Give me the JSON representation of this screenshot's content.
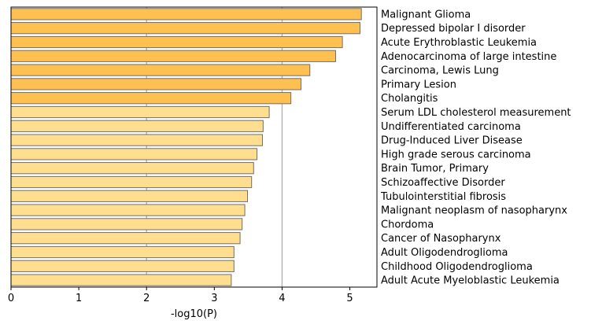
{
  "chart_data": {
    "type": "bar",
    "orientation": "horizontal",
    "xlabel": "-log10(P)",
    "xlim": [
      0,
      5.4
    ],
    "xticks": [
      0,
      1,
      2,
      3,
      4,
      5
    ],
    "grid": "vertical",
    "gridlines_at": [
      2,
      4
    ],
    "categories": [
      "Malignant Glioma",
      "Depressed bipolar I disorder",
      "Acute Erythroblastic Leukemia",
      "Adenocarcinoma of large intestine",
      "Carcinoma, Lewis Lung",
      "Primary Lesion",
      "Cholangitis",
      "Serum LDL cholesterol measurement",
      "Undifferentiated carcinoma",
      "Drug-Induced Liver Disease",
      "High grade serous carcinoma",
      "Brain Tumor, Primary",
      "Schizoaffective Disorder",
      "Tubulointerstitial fibrosis",
      "Malignant neoplasm of nasopharynx",
      "Chordoma",
      "Cancer of Nasopharynx",
      "Adult Oligodendroglioma",
      "Childhood Oligodendroglioma",
      "Adult Acute Myeloblastic Leukemia"
    ],
    "values": [
      5.17,
      5.15,
      4.89,
      4.79,
      4.41,
      4.28,
      4.13,
      3.81,
      3.72,
      3.71,
      3.63,
      3.58,
      3.55,
      3.49,
      3.45,
      3.41,
      3.38,
      3.29,
      3.29,
      3.25
    ],
    "colors": {
      "strong": "#ffc052",
      "weak": "#ffdf8f",
      "bar_edge": "#6e6e6e",
      "grid": "#b3b3b3"
    },
    "strong_count": 7
  }
}
